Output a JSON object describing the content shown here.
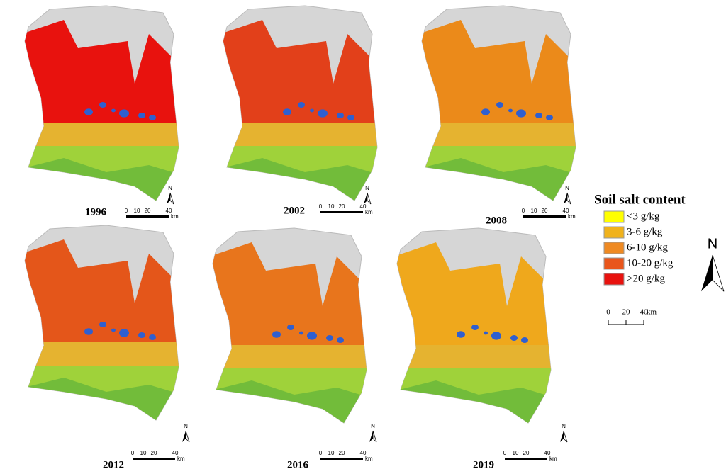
{
  "panels": [
    {
      "year": "1996",
      "scale": [
        "0",
        "10",
        "20",
        "40"
      ],
      "unit": "km",
      "north": "N"
    },
    {
      "year": "2002",
      "scale": [
        "0",
        "10",
        "20",
        "40"
      ],
      "unit": "km",
      "north": "N"
    },
    {
      "year": "2008",
      "scale": [
        "0",
        "10",
        "20",
        "40"
      ],
      "unit": "km",
      "north": "N"
    },
    {
      "year": "2012",
      "scale": [
        "0",
        "10",
        "20",
        "40"
      ],
      "unit": "km",
      "north": "N"
    },
    {
      "year": "2016",
      "scale": [
        "0",
        "10",
        "20",
        "40"
      ],
      "unit": "km",
      "north": "N"
    },
    {
      "year": "2019",
      "scale": [
        "0",
        "10",
        "20",
        "40"
      ],
      "unit": "km",
      "north": "N"
    }
  ],
  "legend": {
    "title": "Soil salt content",
    "items": [
      {
        "label": "<3 g/kg",
        "color": "#ffff00"
      },
      {
        "label": "3-6 g/kg",
        "color": "#f0b21c"
      },
      {
        "label": "6-10 g/kg",
        "color": "#ef8a23"
      },
      {
        "label": "10-20 g/kg",
        "color": "#e9561c"
      },
      {
        "label": ">20 g/kg",
        "color": "#e8120e"
      }
    ],
    "north": "N",
    "scale": [
      "0",
      "20",
      "40"
    ],
    "unit": "km"
  }
}
